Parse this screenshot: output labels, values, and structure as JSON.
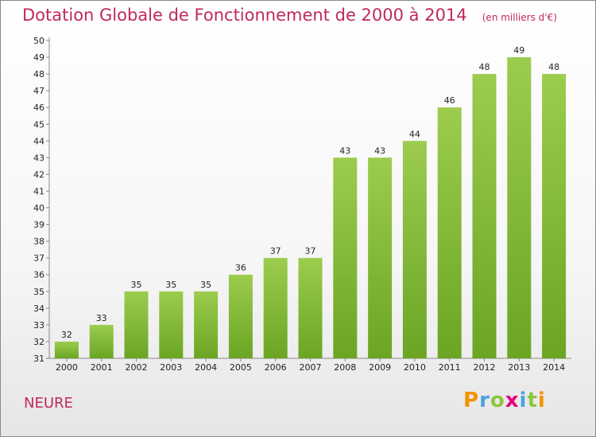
{
  "chart_data": {
    "type": "bar",
    "title": "Dotation Globale de Fonctionnement de 2000 à 2014",
    "unit_note": "(en milliers d'€)",
    "categories": [
      "2000",
      "2001",
      "2002",
      "2003",
      "2004",
      "2005",
      "2006",
      "2007",
      "2008",
      "2009",
      "2010",
      "2011",
      "2012",
      "2013",
      "2014"
    ],
    "values": [
      32,
      33,
      35,
      35,
      35,
      36,
      37,
      37,
      43,
      43,
      44,
      46,
      48,
      49,
      48
    ],
    "ylim": [
      31,
      50
    ],
    "yticks": [
      31,
      32,
      33,
      34,
      35,
      36,
      37,
      38,
      39,
      40,
      41,
      42,
      43,
      44,
      45,
      46,
      47,
      48,
      49,
      50
    ],
    "grid": false,
    "legend": "none",
    "bar_color_top": "#9ccc4e",
    "bar_color_bottom": "#6ba523"
  },
  "footer": {
    "commune": "NEURE",
    "brand": "Proxiti"
  },
  "colors": {
    "title": "#c0285f",
    "brand_letters": [
      "#f39200",
      "#4ca3dd",
      "#8cc63f",
      "#e5007e",
      "#4ca3dd",
      "#8cc63f",
      "#f39200"
    ]
  }
}
